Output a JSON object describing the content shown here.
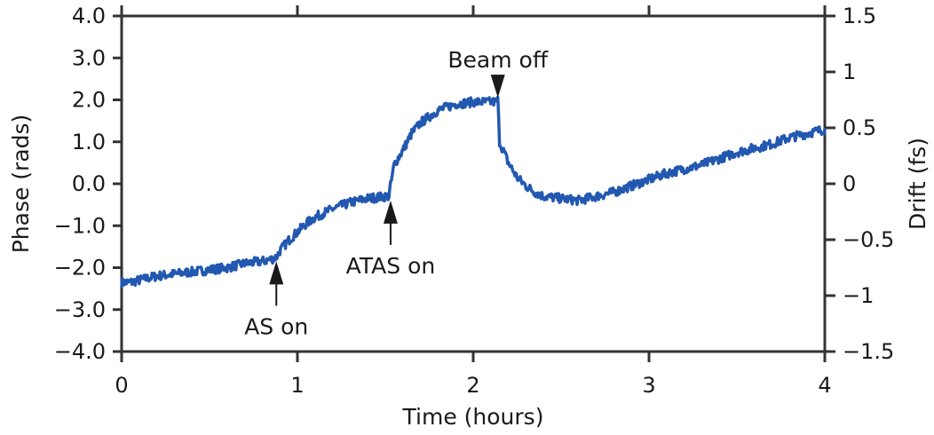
{
  "colors": {
    "series": "#2258b0",
    "axis": "#333333",
    "text": "#1a1a1a"
  },
  "chart_data": {
    "type": "line",
    "title": "",
    "xlabel": "Time (hours)",
    "ylabel": "Phase (rads)",
    "y2label": "Drift (fs)",
    "xlim": [
      0,
      4
    ],
    "ylim": [
      -4.0,
      4.0
    ],
    "y2lim": [
      -1.5,
      1.5
    ],
    "x_ticks": [
      "0",
      "1",
      "2",
      "3",
      "4"
    ],
    "x_tick_values": [
      0,
      1,
      2,
      3,
      4
    ],
    "y_ticks": [
      "4.0",
      "3.0",
      "2.0",
      "1.0",
      "0.0",
      "−1.0",
      "−2.0",
      "−3.0",
      "−4.0"
    ],
    "y_tick_values": [
      4,
      3,
      2,
      1,
      0,
      -1,
      -2,
      -3,
      -4
    ],
    "y2_ticks": [
      "1.5",
      "1",
      "0.5",
      "0",
      "−0.5",
      "−1",
      "−1.5"
    ],
    "y2_tick_values": [
      1.5,
      1,
      0.5,
      0,
      -0.5,
      -1,
      -1.5
    ],
    "grid": false,
    "series": [
      {
        "x": [
          0,
          0.05,
          0.1,
          0.2,
          0.3,
          0.4,
          0.5,
          0.6,
          0.7,
          0.8,
          0.85,
          0.88,
          0.9,
          0.95,
          1.0,
          1.05,
          1.1,
          1.2,
          1.3,
          1.4,
          1.5,
          1.52,
          1.53,
          1.55,
          1.6,
          1.65,
          1.7,
          1.75,
          1.8,
          1.9,
          2.0,
          2.05,
          2.1,
          2.13,
          2.14,
          2.15,
          2.2,
          2.25,
          2.3,
          2.35,
          2.4,
          2.5,
          2.6,
          2.7,
          2.8,
          2.9,
          3.0,
          3.1,
          3.2,
          3.3,
          3.4,
          3.5,
          3.6,
          3.7,
          3.8,
          3.9,
          4.0
        ],
        "y": [
          -2.35,
          -2.35,
          -2.3,
          -2.2,
          -2.15,
          -2.1,
          -2.05,
          -2.0,
          -1.9,
          -1.85,
          -1.8,
          -1.75,
          -1.6,
          -1.35,
          -1.15,
          -0.95,
          -0.8,
          -0.6,
          -0.45,
          -0.35,
          -0.3,
          -0.3,
          -0.05,
          0.45,
          0.8,
          1.2,
          1.45,
          1.6,
          1.75,
          1.9,
          1.95,
          1.95,
          1.95,
          1.95,
          2.0,
          1.0,
          0.5,
          0.15,
          -0.05,
          -0.2,
          -0.3,
          -0.35,
          -0.4,
          -0.3,
          -0.2,
          -0.05,
          0.1,
          0.25,
          0.35,
          0.45,
          0.6,
          0.75,
          0.85,
          0.95,
          1.1,
          1.2,
          1.3
        ]
      }
    ],
    "annotations": [
      {
        "text": "AS on",
        "x": 0.88,
        "y": -1.85,
        "direction": "up"
      },
      {
        "text": "ATAS on",
        "x": 1.53,
        "y": -0.4,
        "direction": "up"
      },
      {
        "text": "Beam off",
        "x": 2.14,
        "y": 2.05,
        "direction": "down"
      }
    ]
  }
}
